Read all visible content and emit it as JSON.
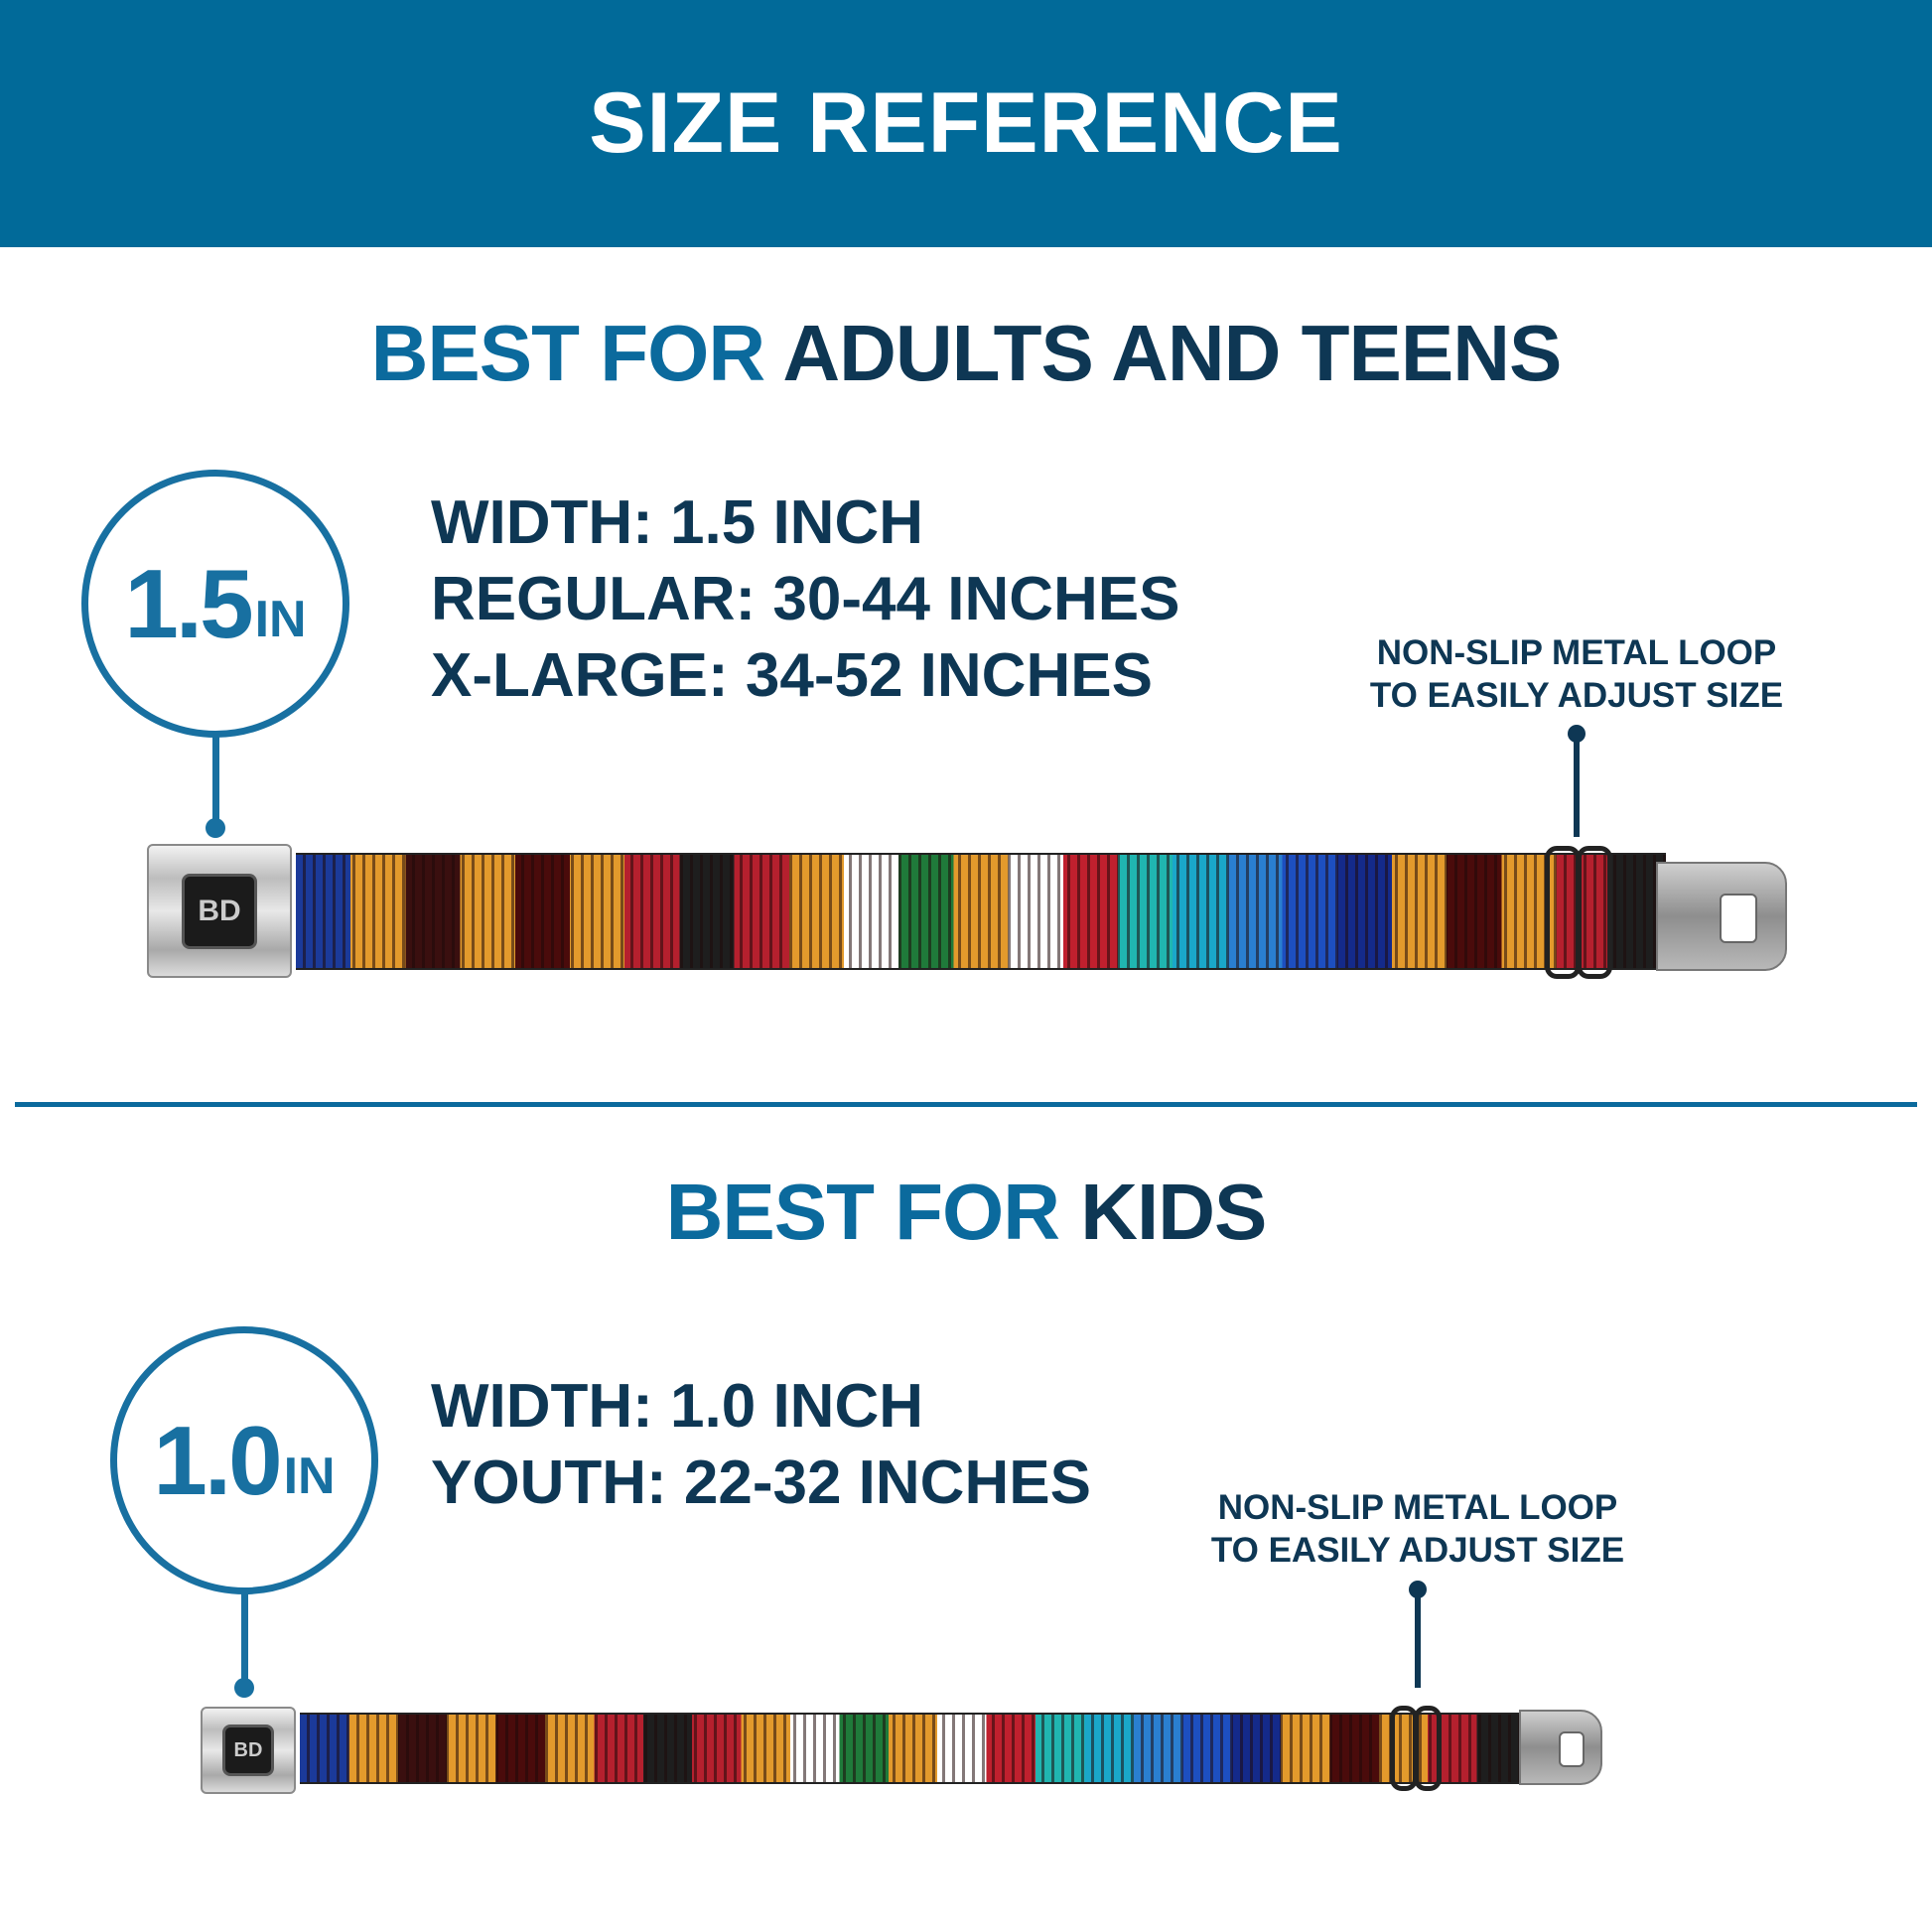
{
  "header": {
    "title": "SIZE REFERENCE"
  },
  "colors": {
    "header_bg": "#016a99",
    "accent_blue": "#0b6a9d",
    "dark_navy": "#0e3754"
  },
  "adult": {
    "title_accent": "BEST FOR",
    "title_main": "ADULTS AND TEENS",
    "badge_value": "1.5",
    "badge_unit": "IN",
    "specs": [
      "WIDTH: 1.5 INCH",
      "REGULAR: 30-44 INCHES",
      "X-LARGE: 34-52 INCHES"
    ],
    "note": [
      "NON-SLIP METAL LOOP",
      "TO EASILY ADJUST SIZE"
    ],
    "buckle_logo": "BD"
  },
  "kids": {
    "title_accent": "BEST FOR",
    "title_main": "KIDS",
    "badge_value": "1.0",
    "badge_unit": "IN",
    "specs": [
      "WIDTH: 1.0 INCH",
      "YOUTH: 22-32 INCHES"
    ],
    "note": [
      "NON-SLIP METAL LOOP",
      "TO EASILY ADJUST SIZE"
    ],
    "buckle_logo": "BD"
  },
  "strap_pattern": [
    "#1b3a9a",
    "#e39a2c",
    "#3a0f0f",
    "#e39a2c",
    "#4a0b0b",
    "#e39a2c",
    "#b5202e",
    "#1e1e1e",
    "#b5202e",
    "#e39a2c",
    "#ffffff",
    "#1f7a3a",
    "#e39a2c",
    "#ffffff",
    "#c0202e",
    "#20b5b0",
    "#1aa7c9",
    "#2a7fd0",
    "#1d4fc0",
    "#142a8a",
    "#e39a2c",
    "#4a0b0b",
    "#e39a2c",
    "#b5202e",
    "#1e1e1e"
  ]
}
